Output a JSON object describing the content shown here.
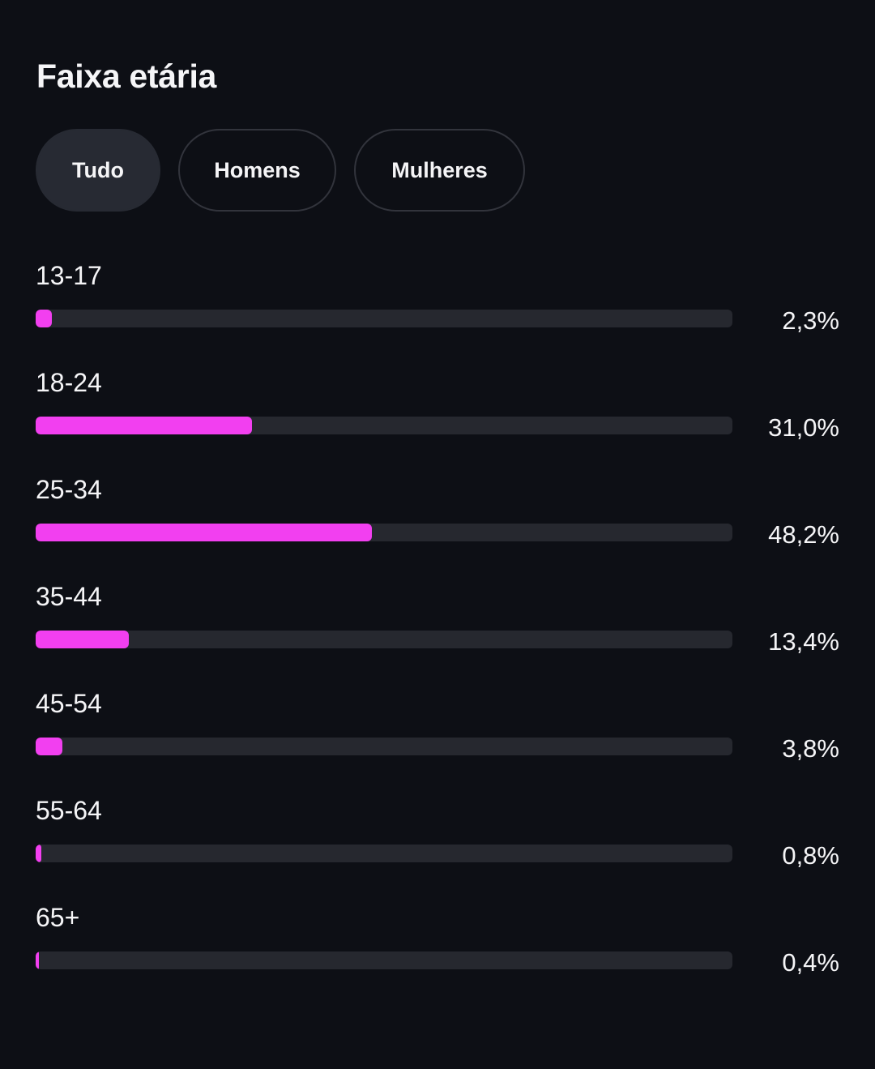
{
  "section": {
    "title": "Faixa etária"
  },
  "filters": {
    "all_label": "Tudo",
    "men_label": "Homens",
    "women_label": "Mulheres",
    "selected": "Tudo"
  },
  "colors": {
    "accent": "#f23ff0",
    "track": "#26282f",
    "background": "#0d0f15",
    "chip_active": "#272a33"
  },
  "age_groups": [
    {
      "label": "13-17",
      "value_text": "2,3%",
      "value": 2.3
    },
    {
      "label": "18-24",
      "value_text": "31,0%",
      "value": 31.0
    },
    {
      "label": "25-34",
      "value_text": "48,2%",
      "value": 48.2
    },
    {
      "label": "35-44",
      "value_text": "13,4%",
      "value": 13.4
    },
    {
      "label": "45-54",
      "value_text": "3,8%",
      "value": 3.8
    },
    {
      "label": "55-64",
      "value_text": "0,8%",
      "value": 0.8
    },
    {
      "label": "65+",
      "value_text": "0,4%",
      "value": 0.4
    }
  ],
  "bar_scale_max_percent": 100
}
